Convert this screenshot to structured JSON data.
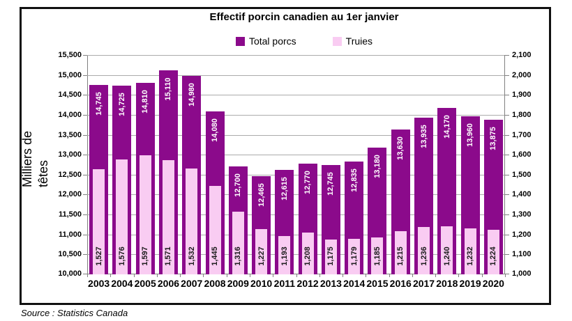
{
  "header": {
    "title": "Effectif porcin canadien au 1er janvier"
  },
  "legend": {
    "items": [
      {
        "label": "Total porcs",
        "color": "#8B0A8B"
      },
      {
        "label": "Truies",
        "color": "#F9CCF2"
      }
    ]
  },
  "y_axis_title": {
    "line1": "Milliers de",
    "line2": "têtes"
  },
  "footer": {
    "source": "Source : Statistics Canada"
  },
  "colors": {
    "total_porcs": "#8B0A8B",
    "truies": "#F9CCF2",
    "gridline": "#ABABAB",
    "axis": "#808080",
    "bar_label_on_purple": "#FFFFFF",
    "bar_label_on_pink": "#1A1A1A"
  },
  "chart_data": {
    "type": "bar",
    "title": "Effectif porcin canadien au 1er janvier",
    "categories": [
      "2003",
      "2004",
      "2005",
      "2006",
      "2007",
      "2008",
      "2009",
      "2010",
      "2011",
      "2012",
      "2013",
      "2014",
      "2015",
      "2016",
      "2017",
      "2018",
      "2019",
      "2020"
    ],
    "series": [
      {
        "name": "Total porcs",
        "axis": "left",
        "color": "#8B0A8B",
        "label_color": "#FFFFFF",
        "values": [
          14745,
          14725,
          14810,
          15110,
          14980,
          14080,
          12700,
          12465,
          12615,
          12770,
          12745,
          12835,
          13180,
          13630,
          13935,
          14170,
          13960,
          13875
        ]
      },
      {
        "name": "Truies",
        "axis": "right",
        "color": "#F9CCF2",
        "label_color": "#1A1A1A",
        "values": [
          1527,
          1576,
          1597,
          1571,
          1532,
          1445,
          1316,
          1227,
          1193,
          1208,
          1175,
          1179,
          1185,
          1215,
          1236,
          1240,
          1232,
          1224
        ]
      }
    ],
    "left_axis": {
      "label": "Milliers de têtes",
      "min": 10000,
      "max": 15500,
      "step": 500
    },
    "right_axis": {
      "min": 1000,
      "max": 2100,
      "step": 100
    },
    "grid": true,
    "legend_position": "top",
    "data_labels": true,
    "source": "Source : Statistics Canada"
  }
}
